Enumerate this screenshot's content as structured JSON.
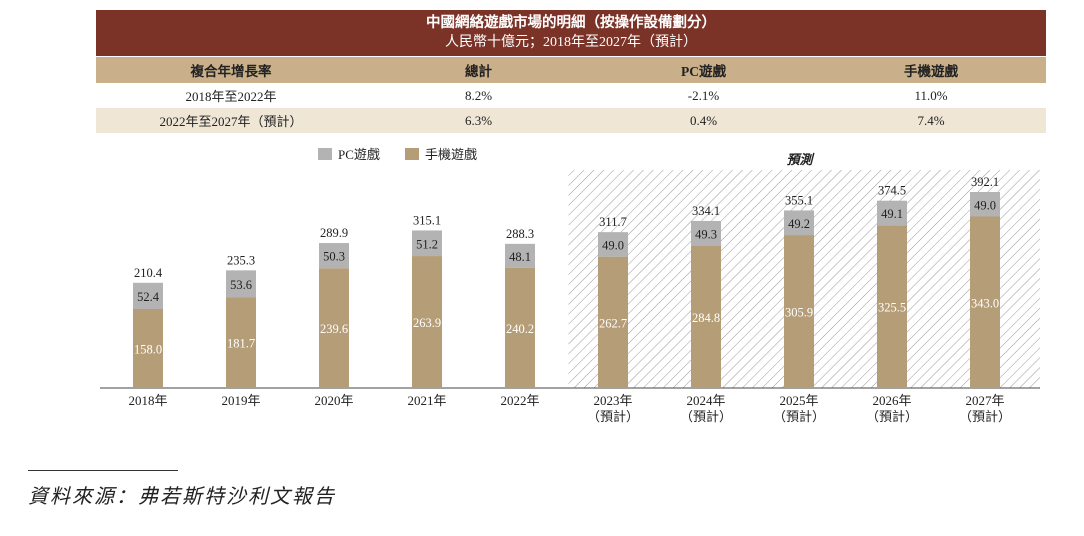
{
  "header": {
    "title": "中國網絡遊戲市場的明細（按操作設備劃分）",
    "subtitle": "人民幣十億元；2018年至2027年（預計）"
  },
  "cagr_table": {
    "columns": [
      "複合年增長率",
      "總計",
      "PC遊戲",
      "手機遊戲"
    ],
    "rows": [
      [
        "2018年至2022年",
        "8.2%",
        "-2.1%",
        "11.0%"
      ],
      [
        "2022年至2027年（預計）",
        "6.3%",
        "0.4%",
        "7.4%"
      ]
    ]
  },
  "colors": {
    "header_bg": "#7b3328",
    "pc": "#b3b3b3",
    "mobile": "#b59d77",
    "forecast_hatch": "#9a9a9a"
  },
  "chart_data": {
    "type": "bar",
    "stacked": true,
    "categories": [
      "2018年",
      "2019年",
      "2020年",
      "2021年",
      "2022年",
      "2023年",
      "2024年",
      "2025年",
      "2026年",
      "2027年"
    ],
    "category_sublabels": [
      "",
      "",
      "",
      "",
      "",
      "（預計）",
      "（預計）",
      "（預計）",
      "（預計）",
      "（預計）"
    ],
    "series": [
      {
        "name": "手機遊戲",
        "values": [
          158.0,
          181.7,
          239.6,
          263.9,
          240.2,
          262.7,
          284.8,
          305.9,
          325.5,
          343.0
        ]
      },
      {
        "name": "PC遊戲",
        "values": [
          52.4,
          53.6,
          50.3,
          51.2,
          48.1,
          49.0,
          49.3,
          49.2,
          49.1,
          49.0
        ]
      }
    ],
    "totals": [
      "210.4",
      "235.3",
      "289.9",
      "315.1",
      "288.3",
      "311.7",
      "334.1",
      "355.1",
      "374.5",
      "392.1"
    ],
    "mobile_labels": [
      "158.0",
      "181.7",
      "239.6",
      "263.9",
      "240.2",
      "262.7",
      "284.8",
      "305.9",
      "325.5",
      "343.0"
    ],
    "pc_labels": [
      "52.4",
      "53.6",
      "50.3",
      "51.2",
      "48.1",
      "49.0",
      "49.3",
      "49.2",
      "49.1",
      "49.0"
    ],
    "legend": [
      "PC遊戲",
      "手機遊戲"
    ],
    "forecast_label": "預測",
    "forecast_start_index": 5,
    "ylim": [
      0,
      420
    ]
  },
  "source": "資料來源：弗若斯特沙利文報告"
}
